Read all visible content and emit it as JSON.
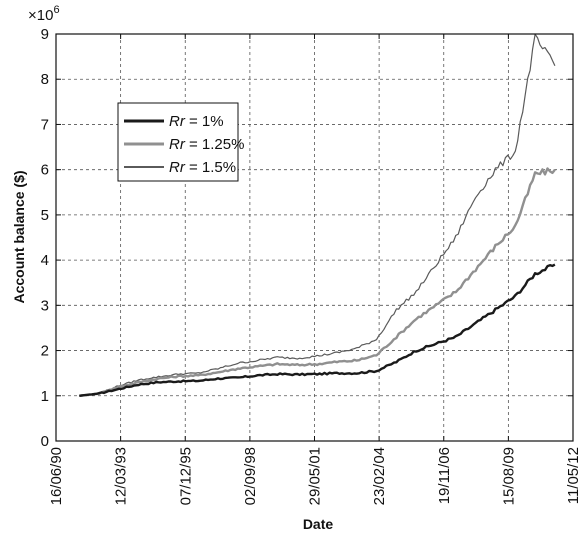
{
  "chart_data": {
    "type": "line",
    "xlabel": "Date",
    "ylabel": "Account balance ($)",
    "y_multiplier_label": "×10",
    "y_multiplier_exp": "6",
    "ylim": [
      0,
      9
    ],
    "y_ticks": [
      "0",
      "1",
      "2",
      "3",
      "4",
      "5",
      "6",
      "7",
      "8",
      "9"
    ],
    "x_ticks": [
      "16/06/90",
      "12/03/93",
      "07/12/95",
      "02/09/98",
      "29/05/01",
      "23/02/04",
      "19/11/06",
      "15/08/09",
      "11/05/12"
    ],
    "grid": true,
    "legend_position": "upper-left",
    "series": [
      {
        "name": "Rr = 1%",
        "legend_italic": "Rr",
        "legend_rest": " = 1%",
        "color": "#1a1a1a",
        "y_millions": [
          1.0,
          1.05,
          1.15,
          1.25,
          1.3,
          1.32,
          1.33,
          1.38,
          1.4,
          1.45,
          1.48,
          1.47,
          1.48,
          1.5,
          1.5,
          1.55,
          1.75,
          2.0,
          2.15,
          2.3,
          2.6,
          2.9,
          3.2,
          3.7,
          3.9
        ]
      },
      {
        "name": "Rr = 1.25%",
        "legend_italic": "Rr",
        "legend_rest": " = 1.25%",
        "color": "#909090",
        "y_millions": [
          1.0,
          1.05,
          1.2,
          1.3,
          1.38,
          1.43,
          1.45,
          1.52,
          1.6,
          1.65,
          1.7,
          1.68,
          1.7,
          1.75,
          1.78,
          1.9,
          2.3,
          2.7,
          3.0,
          3.3,
          3.8,
          4.3,
          4.75,
          5.9,
          6.0
        ]
      },
      {
        "name": "Rr = 1.5%",
        "legend_italic": "Rr",
        "legend_rest": " = 1.5%",
        "color": "#5a5a5a",
        "y_millions": [
          1.0,
          1.06,
          1.22,
          1.35,
          1.42,
          1.48,
          1.5,
          1.6,
          1.72,
          1.78,
          1.85,
          1.83,
          1.88,
          1.95,
          2.05,
          2.25,
          2.9,
          3.3,
          3.9,
          4.5,
          5.4,
          6.0,
          6.4,
          8.9,
          8.3
        ]
      }
    ]
  }
}
